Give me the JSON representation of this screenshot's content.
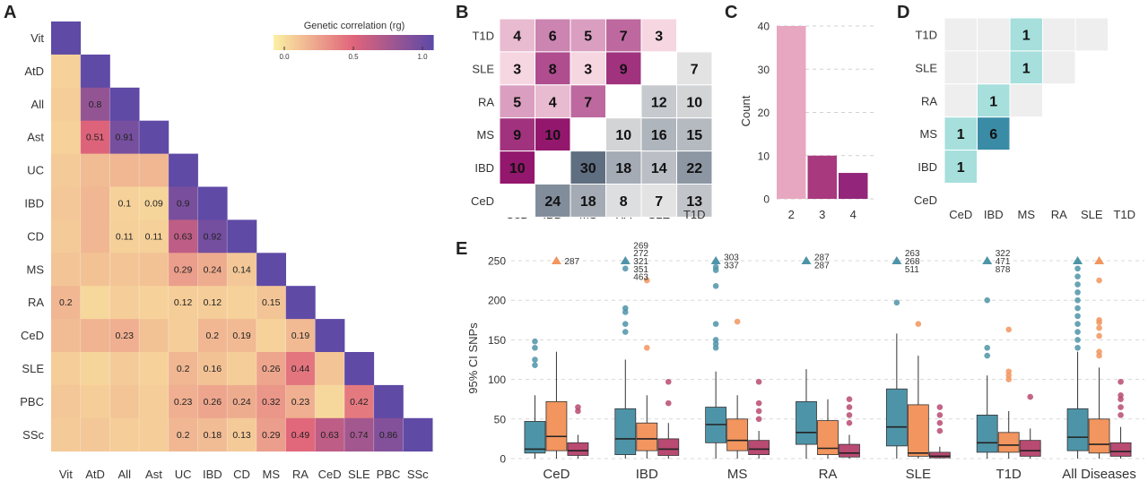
{
  "panel_letters": {
    "A": "A",
    "B": "B",
    "C": "C",
    "D": "D",
    "E": "E"
  },
  "chart_data": [
    {
      "panel": "A",
      "type": "heatmap",
      "legend_title": "Genetic correlation (rg)",
      "legend_ticks": [
        "0.0",
        "0.5",
        "1.0"
      ],
      "traits": [
        "Vit",
        "AtD",
        "All",
        "Ast",
        "UC",
        "IBD",
        "CD",
        "MS",
        "RA",
        "CeD",
        "SLE",
        "PBC",
        "SSc"
      ],
      "x_tick_labels": [
        "Vit",
        "AtD",
        "All",
        "Ast",
        "UC",
        "IBD",
        "CD",
        "MS",
        "RA",
        "CeD",
        "SLE",
        "PBC",
        "SSc"
      ],
      "y_tick_labels": [
        "Vit",
        "AtD",
        "All",
        "Ast",
        "UC",
        "IBD",
        "CD",
        "MS",
        "RA",
        "CeD",
        "SLE",
        "PBC",
        "SSc"
      ],
      "colors": {
        "low": "#fbeea2",
        "mid": "#e0647a",
        "high": "#5f4aa6"
      },
      "matrix": [
        [
          1.0
        ],
        [
          0.1,
          1.0
        ],
        [
          0.12,
          0.8,
          1.0
        ],
        [
          0.1,
          0.51,
          0.91,
          1.0
        ],
        [
          0.13,
          0.18,
          0.2,
          0.2,
          1.0
        ],
        [
          0.14,
          0.2,
          0.1,
          0.09,
          0.9,
          1.0
        ],
        [
          0.13,
          0.2,
          0.11,
          0.11,
          0.63,
          0.92,
          1.0
        ],
        [
          0.15,
          0.16,
          0.15,
          0.16,
          0.29,
          0.24,
          0.14,
          1.0
        ],
        [
          0.2,
          0.08,
          0.12,
          0.1,
          0.12,
          0.12,
          0.1,
          0.15,
          1.0
        ],
        [
          0.18,
          0.21,
          0.23,
          0.16,
          0.12,
          0.2,
          0.19,
          0.1,
          0.19,
          1.0
        ],
        [
          0.12,
          0.09,
          0.13,
          0.1,
          0.2,
          0.16,
          0.12,
          0.26,
          0.44,
          0.15,
          1.0
        ],
        [
          0.14,
          0.12,
          0.15,
          0.12,
          0.23,
          0.26,
          0.24,
          0.32,
          0.23,
          0.08,
          0.42,
          1.0
        ],
        [
          0.13,
          0.14,
          0.12,
          0.12,
          0.2,
          0.18,
          0.13,
          0.29,
          0.49,
          0.63,
          0.74,
          0.86,
          1.0
        ]
      ],
      "labels": [
        [
          ""
        ],
        [
          "",
          ""
        ],
        [
          "",
          "0.8",
          ""
        ],
        [
          "",
          "0.51",
          "0.91",
          ""
        ],
        [
          "",
          "",
          "",
          "",
          ""
        ],
        [
          "",
          "",
          "0.1",
          "0.09",
          "0.9",
          ""
        ],
        [
          "",
          "",
          "0.11",
          "0.11",
          "0.63",
          "0.92",
          ""
        ],
        [
          "",
          "",
          "",
          "",
          "0.29",
          "0.24",
          "0.14",
          ""
        ],
        [
          "0.2",
          "",
          "",
          "",
          "0.12",
          "0.12",
          "",
          "0.15",
          ""
        ],
        [
          "",
          "",
          "0.23",
          "",
          "",
          "0.2",
          "0.19",
          "",
          "0.19",
          ""
        ],
        [
          "",
          "",
          "",
          "",
          "0.2",
          "0.16",
          "",
          "0.26",
          "0.44",
          "",
          ""
        ],
        [
          "",
          "",
          "",
          "",
          "0.23",
          "0.26",
          "0.24",
          "0.32",
          "0.23",
          "",
          "0.42",
          ""
        ],
        [
          "",
          "",
          "",
          "",
          "0.2",
          "0.18",
          "0.13",
          "0.29",
          "0.49",
          "0.63",
          "0.74",
          "0.86",
          ""
        ]
      ]
    },
    {
      "panel": "B",
      "type": "heatmap",
      "x_tick_labels": [
        "CeD",
        "IBD",
        "MS",
        "RA",
        "SLE",
        "T1D"
      ],
      "y_tick_labels": [
        "T1D",
        "SLE",
        "RA",
        "MS",
        "IBD",
        "CeD"
      ],
      "values": [
        [
          4,
          6,
          5,
          7,
          3,
          null
        ],
        [
          3,
          8,
          3,
          9,
          null,
          7
        ],
        [
          5,
          4,
          7,
          null,
          12,
          10
        ],
        [
          9,
          10,
          null,
          10,
          16,
          15
        ],
        [
          10,
          null,
          30,
          18,
          14,
          22
        ],
        [
          null,
          24,
          18,
          8,
          7,
          13
        ]
      ],
      "upper_colors": {
        "low": "#f6d6e1",
        "high": "#a1327e"
      },
      "lower_colors": {
        "low": "#e3e3e3",
        "high": "#5f6e81"
      },
      "diagonal_color": "#ffffff"
    },
    {
      "panel": "C",
      "type": "bar",
      "categories": [
        "2",
        "3",
        "4"
      ],
      "values": [
        40,
        10,
        6
      ],
      "ylabel": "Count",
      "ylim": [
        0,
        42
      ],
      "yticks": [
        "0",
        "10",
        "20",
        "30",
        "40"
      ],
      "colors": [
        "#e8a7c0",
        "#a8397f",
        "#93267a"
      ]
    },
    {
      "panel": "D",
      "type": "heatmap",
      "x_tick_labels": [
        "CeD",
        "IBD",
        "MS",
        "RA",
        "SLE",
        "T1D"
      ],
      "y_tick_labels": [
        "T1D",
        "SLE",
        "RA",
        "MS",
        "IBD",
        "CeD"
      ],
      "values": [
        [
          0,
          0,
          1,
          0,
          0,
          null
        ],
        [
          0,
          0,
          1,
          0,
          null,
          null
        ],
        [
          0,
          1,
          0,
          null,
          null,
          null
        ],
        [
          1,
          6,
          null,
          null,
          null,
          null
        ],
        [
          1,
          null,
          null,
          null,
          null,
          null
        ],
        [
          null,
          null,
          null,
          null,
          null,
          null
        ]
      ],
      "colors": {
        "zero": "#eeeeee",
        "low": "#a6dfdc",
        "high": "#3a8ca6"
      }
    },
    {
      "panel": "E",
      "type": "box",
      "ylabel": "95% CI SNPs",
      "ylim": [
        0,
        262
      ],
      "yticks": [
        "0",
        "50",
        "100",
        "150",
        "200",
        "250"
      ],
      "categories": [
        "CeD",
        "IBD",
        "MS",
        "RA",
        "SLE",
        "T1D",
        "All Diseases"
      ],
      "series_colors": [
        "#4e94a8",
        "#f2955e",
        "#b94a72"
      ],
      "groups": [
        {
          "boxes": [
            {
              "q1": 7,
              "median": 12,
              "q3": 47,
              "whislo": 0,
              "whishi": 80,
              "outliers": [
                118,
                125,
                140,
                148
              ]
            },
            {
              "q1": 10,
              "median": 28,
              "q3": 72,
              "whislo": 0,
              "whishi": 135,
              "outliers": []
            },
            {
              "q1": 4,
              "median": 10,
              "q3": 20,
              "whislo": 0,
              "whishi": 30,
              "outliers": [
                60,
                65
              ]
            }
          ],
          "capped": [
            {
              "series": 1,
              "labels": [
                "287"
              ]
            }
          ]
        },
        {
          "boxes": [
            {
              "q1": 5,
              "median": 25,
              "q3": 63,
              "whislo": 0,
              "whishi": 125,
              "outliers": [
                160,
                170,
                185,
                190,
                240
              ]
            },
            {
              "q1": 10,
              "median": 25,
              "q3": 45,
              "whislo": 0,
              "whishi": 80,
              "outliers": [
                140,
                225
              ]
            },
            {
              "q1": 4,
              "median": 12,
              "q3": 25,
              "whislo": 0,
              "whishi": 45,
              "outliers": [
                70,
                97
              ]
            }
          ],
          "capped": [
            {
              "series": 0,
              "labels": [
                "269",
                "272",
                "321",
                "351",
                "463"
              ]
            }
          ]
        },
        {
          "boxes": [
            {
              "q1": 20,
              "median": 43,
              "q3": 65,
              "whislo": 0,
              "whishi": 110,
              "outliers": [
                140,
                145,
                150,
                170,
                218,
                238,
                242
              ]
            },
            {
              "q1": 10,
              "median": 23,
              "q3": 50,
              "whislo": 0,
              "whishi": 80,
              "outliers": [
                173
              ]
            },
            {
              "q1": 5,
              "median": 12,
              "q3": 23,
              "whislo": 0,
              "whishi": 35,
              "outliers": [
                50,
                60,
                70,
                97
              ]
            }
          ],
          "capped": [
            {
              "series": 0,
              "labels": [
                "303",
                "337"
              ]
            }
          ]
        },
        {
          "boxes": [
            {
              "q1": 18,
              "median": 33,
              "q3": 72,
              "whislo": 0,
              "whishi": 113,
              "outliers": []
            },
            {
              "q1": 5,
              "median": 13,
              "q3": 48,
              "whislo": 0,
              "whishi": 75,
              "outliers": []
            },
            {
              "q1": 2,
              "median": 7,
              "q3": 18,
              "whislo": 0,
              "whishi": 30,
              "outliers": [
                45,
                55,
                65,
                75
              ]
            }
          ],
          "capped": [
            {
              "series": 0,
              "labels": [
                "287",
                "287"
              ]
            }
          ]
        },
        {
          "boxes": [
            {
              "q1": 16,
              "median": 40,
              "q3": 88,
              "whislo": 0,
              "whishi": 158,
              "outliers": [
                197
              ]
            },
            {
              "q1": 3,
              "median": 7,
              "q3": 68,
              "whislo": 0,
              "whishi": 130,
              "outliers": [
                170
              ]
            },
            {
              "q1": 1,
              "median": 3,
              "q3": 8,
              "whislo": 0,
              "whishi": 15,
              "outliers": [
                35,
                45,
                55,
                65
              ]
            }
          ],
          "capped": [
            {
              "series": 0,
              "labels": [
                "263",
                "268",
                "511"
              ]
            }
          ]
        },
        {
          "boxes": [
            {
              "q1": 8,
              "median": 20,
              "q3": 55,
              "whislo": 0,
              "whishi": 105,
              "outliers": [
                130,
                140,
                200
              ]
            },
            {
              "q1": 8,
              "median": 17,
              "q3": 33,
              "whislo": 0,
              "whishi": 60,
              "outliers": [
                100,
                105,
                110,
                163
              ]
            },
            {
              "q1": 3,
              "median": 10,
              "q3": 23,
              "whislo": 0,
              "whishi": 38,
              "outliers": [
                78
              ]
            }
          ],
          "capped": [
            {
              "series": 0,
              "labels": [
                "322",
                "471",
                "878"
              ]
            }
          ]
        },
        {
          "boxes": [
            {
              "q1": 10,
              "median": 27,
              "q3": 63,
              "whislo": 0,
              "whishi": 135,
              "outliers": [
                140,
                150,
                160,
                170,
                180,
                190,
                200,
                210,
                220,
                230,
                240
              ]
            },
            {
              "q1": 7,
              "median": 18,
              "q3": 50,
              "whislo": 0,
              "whishi": 115,
              "outliers": [
                130,
                135,
                155,
                165,
                172,
                175,
                225
              ]
            },
            {
              "q1": 3,
              "median": 9,
              "q3": 20,
              "whislo": 0,
              "whishi": 40,
              "outliers": [
                55,
                65,
                75,
                80,
                97
              ]
            }
          ],
          "capped": [
            {
              "series": 0,
              "labels": []
            },
            {
              "series": 1,
              "labels": []
            }
          ]
        }
      ]
    }
  ]
}
